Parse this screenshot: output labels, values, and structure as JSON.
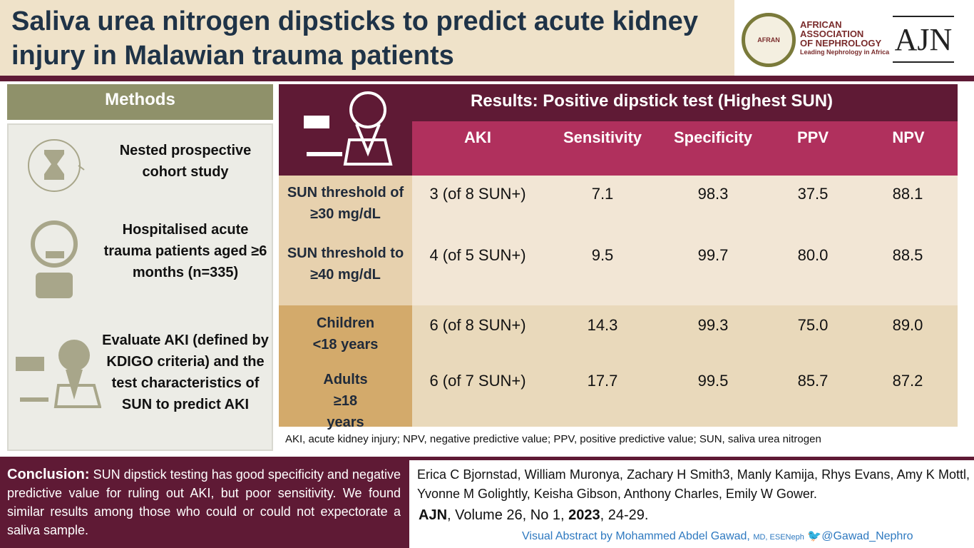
{
  "title": "Saliva urea nitrogen dipsticks to predict acute kidney injury in Malawian trauma patients",
  "logos": {
    "afran_seal": "AFRAN",
    "afran_name": [
      "AFRICAN",
      "ASSOCIATION",
      "OF NEPHROLOGY"
    ],
    "afran_tagline": "Leading Nephrology in Africa",
    "ajn": "AJN"
  },
  "methods": {
    "heading": "Methods",
    "items": [
      {
        "icon": "hourglass-icon",
        "text": "Nested prospective cohort study"
      },
      {
        "icon": "patient-icon",
        "text": "Hospitalised acute trauma patients aged ≥6 months (n=335)"
      },
      {
        "icon": "saliva-dipstick-icon",
        "text": "Evaluate AKI (defined by KDIGO criteria) and the test characteristics of SUN to predict AKI"
      }
    ]
  },
  "results": {
    "heading": "Results: Positive dipstick test (Highest SUN)",
    "columns": [
      "AKI",
      "Sensitivity",
      "Specificity",
      "PPV",
      "NPV"
    ],
    "rows": [
      {
        "label": "SUN threshold of ≥30 mg/dL",
        "values": [
          "3 (of 8 SUN+)",
          "7.1",
          "98.3",
          "37.5",
          "88.1"
        ]
      },
      {
        "label": "SUN threshold to ≥40 mg/dL",
        "values": [
          "4 (of 5 SUN+)",
          "9.5",
          "99.7",
          "80.0",
          "88.5"
        ]
      },
      {
        "label": "Children <18 years",
        "values": [
          "6 (of 8 SUN+)",
          "14.3",
          "99.3",
          "75.0",
          "89.0"
        ]
      },
      {
        "label": "Adults ≥18 years",
        "values": [
          "6 (of 7 SUN+)",
          "17.7",
          "99.5",
          "85.7",
          "87.2"
        ]
      }
    ],
    "footnote": "AKI, acute kidney injury; NPV, negative predictive value; PPV, positive predictive value; SUN, saliva urea nitrogen"
  },
  "conclusion": {
    "label": "Conclusion:",
    "text": "SUN dipstick testing has good specificity and negative predictive value for ruling out AKI, but poor sensitivity. We found similar results among those who could or could not expectorate a saliva sample."
  },
  "citation": {
    "authors": "Erica C Bjornstad, William Muronya, Zachary H Smith3, Manly Kamija, Rhys Evans, Amy K Mottl, Yvonne M Golightly, Keisha Gibson, Anthony Charles, Emily W Gower.",
    "journal": "AJN",
    "details_a": ", Volume 26, No 1, ",
    "year": "2023",
    "details_b": ", 24-29.",
    "credit": "Visual Abstract by Mohammed Abdel Gawad,",
    "credit_degrees": "MD, ESENeph",
    "twitter": "@Gawad_Nephro"
  },
  "colors": {
    "maroon": "#5f1a35",
    "pink": "#b0305d",
    "olive": "#8f916a",
    "title": "#1f3347"
  }
}
